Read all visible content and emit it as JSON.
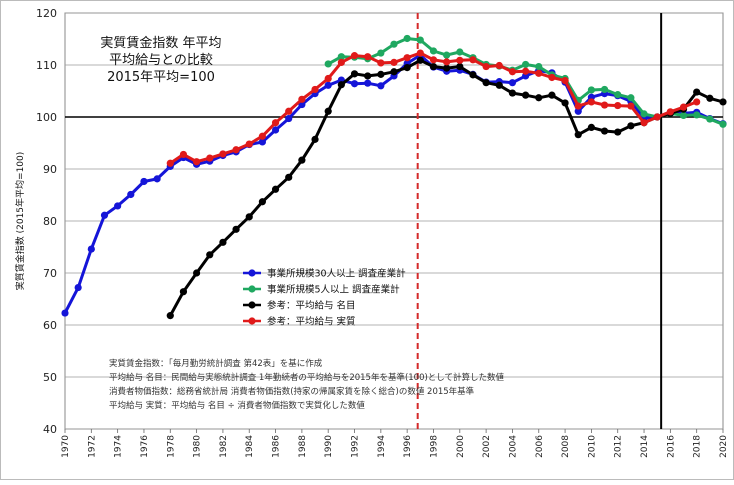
{
  "chart_data": {
    "type": "line",
    "title_lines": [
      "実質賃金指数 年平均",
      "平均給与との比較",
      "2015年平均=100"
    ],
    "ylabel": "実質賃金指数 (2015年平均=100)",
    "ylim": [
      40,
      120
    ],
    "yticks": [
      40,
      50,
      60,
      70,
      80,
      90,
      100,
      110,
      120
    ],
    "xlim": [
      1970,
      2020
    ],
    "xticks": [
      1970,
      1972,
      1974,
      1976,
      1978,
      1980,
      1982,
      1984,
      1986,
      1988,
      1990,
      1992,
      1994,
      1996,
      1998,
      2000,
      2002,
      2004,
      2006,
      2008,
      2010,
      2012,
      2014,
      2016,
      2018,
      2020
    ],
    "reference_line_y": 100,
    "vline_solid_x": 2015.3,
    "vline_dashed_x": 1996.8,
    "legend": [
      {
        "label": "事業所規模30人以上 調査産業計",
        "color": "#1515d8"
      },
      {
        "label": "事業所規模5人以上 調査産業計",
        "color": "#1fa860"
      },
      {
        "label": "参考：平均給与 名目",
        "color": "#000000"
      },
      {
        "label": "参考：平均給与 実質",
        "color": "#e01a1a"
      }
    ],
    "notes": [
      "実質賃金指数：「毎月勤労統計調査 第42表」を基に作成",
      "平均給与 名目：民間給与実態統計調査 1年勤続者の平均給与を2015年を基準(100)として計算した数値",
      "消費者物価指数：総務省統計局 消費者物価指数(持家の帰属家賃を除く総合)の数値 2015年基準",
      "平均給与 実質：平均給与 名目 ÷ 消費者物価指数で実質化した数値"
    ],
    "series": [
      {
        "name": "事業所規模30人以上 調査産業計",
        "color": "#1515d8",
        "x": [
          1970,
          1971,
          1972,
          1973,
          1974,
          1975,
          1976,
          1977,
          1978,
          1979,
          1980,
          1981,
          1982,
          1983,
          1984,
          1985,
          1986,
          1987,
          1988,
          1989,
          1990,
          1991,
          1992,
          1993,
          1994,
          1995,
          1996,
          1997,
          1998,
          1999,
          2000,
          2001,
          2002,
          2003,
          2004,
          2005,
          2006,
          2007,
          2008,
          2009,
          2010,
          2011,
          2012,
          2013,
          2014,
          2015,
          2016,
          2017,
          2018,
          2019,
          2020
        ],
        "y": [
          62.3,
          67.2,
          74.6,
          81.1,
          82.9,
          85.1,
          87.6,
          88.1,
          90.5,
          92.2,
          90.9,
          91.5,
          92.6,
          93.3,
          94.7,
          95.2,
          97.5,
          99.7,
          102.4,
          104.5,
          106.1,
          107.1,
          106.4,
          106.5,
          106.0,
          107.9,
          110.3,
          111.9,
          109.6,
          108.8,
          109.0,
          108.2,
          106.7,
          106.8,
          106.6,
          107.9,
          108.9,
          108.5,
          106.7,
          101.1,
          103.8,
          104.5,
          104.1,
          103.0,
          99.8,
          100.0,
          100.9,
          100.7,
          100.9,
          99.7,
          98.7
        ]
      },
      {
        "name": "事業所規模5人以上 調査産業計",
        "color": "#1fa860",
        "x": [
          1990,
          1991,
          1992,
          1993,
          1994,
          1995,
          1996,
          1997,
          1998,
          1999,
          2000,
          2001,
          2002,
          2003,
          2004,
          2005,
          2006,
          2007,
          2008,
          2009,
          2010,
          2011,
          2012,
          2013,
          2014,
          2015,
          2016,
          2017,
          2018,
          2019,
          2020
        ],
        "y": [
          110.2,
          111.6,
          111.5,
          111.2,
          112.3,
          114.0,
          115.1,
          114.8,
          112.7,
          111.9,
          112.5,
          111.4,
          110.1,
          109.8,
          109.0,
          110.1,
          109.7,
          108.1,
          107.4,
          103.2,
          105.2,
          105.3,
          104.3,
          103.7,
          100.6,
          100.0,
          100.7,
          100.3,
          100.4,
          99.6,
          98.6
        ]
      },
      {
        "name": "参考：平均給与 名目",
        "color": "#000000",
        "x": [
          1978,
          1979,
          1980,
          1981,
          1982,
          1983,
          1984,
          1985,
          1986,
          1987,
          1988,
          1989,
          1990,
          1991,
          1992,
          1993,
          1994,
          1995,
          1996,
          1997,
          1998,
          1999,
          2000,
          2001,
          2002,
          2003,
          2004,
          2005,
          2006,
          2007,
          2008,
          2009,
          2010,
          2011,
          2012,
          2013,
          2014,
          2015,
          2016,
          2017,
          2018,
          2019,
          2020
        ],
        "y": [
          61.8,
          66.4,
          70.0,
          73.5,
          75.9,
          78.4,
          80.8,
          83.7,
          86.1,
          88.4,
          91.7,
          95.7,
          101.1,
          106.2,
          108.3,
          107.9,
          108.2,
          108.7,
          109.5,
          110.9,
          109.7,
          109.4,
          109.7,
          108.1,
          106.6,
          106.1,
          104.6,
          104.2,
          103.7,
          104.2,
          102.7,
          96.6,
          98.0,
          97.3,
          97.1,
          98.3,
          98.9,
          100.0,
          100.7,
          101.5,
          104.8,
          103.6,
          102.9
        ]
      },
      {
        "name": "参考：平均給与 実質",
        "color": "#e01a1a",
        "x": [
          1978,
          1979,
          1980,
          1981,
          1982,
          1983,
          1984,
          1985,
          1986,
          1987,
          1988,
          1989,
          1990,
          1991,
          1992,
          1993,
          1994,
          1995,
          1996,
          1997,
          1998,
          1999,
          2000,
          2001,
          2002,
          2003,
          2004,
          2005,
          2006,
          2007,
          2008,
          2009,
          2010,
          2011,
          2012,
          2013,
          2014,
          2015,
          2016,
          2017,
          2018
        ],
        "y": [
          91.1,
          92.8,
          91.4,
          92.1,
          92.9,
          93.7,
          94.8,
          96.3,
          98.9,
          101.1,
          103.4,
          105.3,
          107.4,
          110.5,
          111.8,
          111.6,
          110.4,
          110.5,
          111.4,
          112.3,
          111.0,
          110.6,
          110.9,
          111.0,
          109.7,
          109.9,
          108.7,
          108.8,
          108.4,
          107.6,
          107.0,
          102.1,
          102.9,
          102.3,
          102.2,
          102.1,
          98.9,
          100.0,
          101.0,
          101.9,
          102.9
        ]
      }
    ]
  }
}
